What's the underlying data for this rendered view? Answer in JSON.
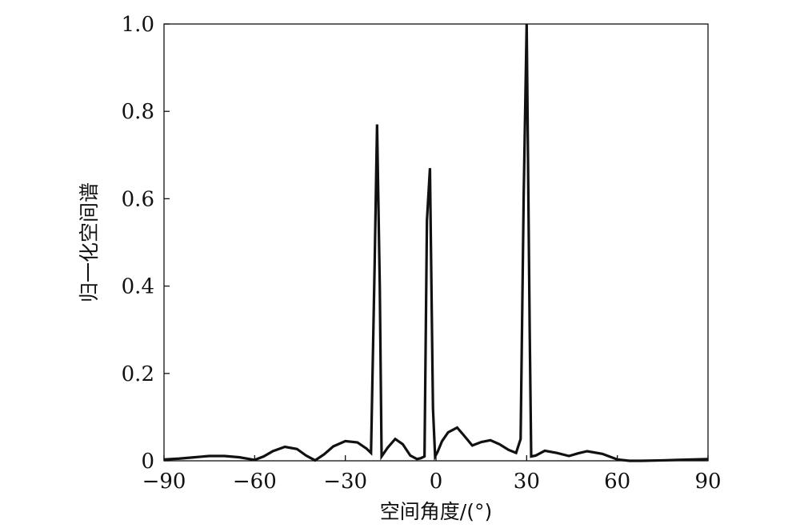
{
  "chart_data": {
    "type": "line",
    "title": "",
    "xlabel": "空间角度/(°)",
    "ylabel": "归一化空间谱",
    "xlim": [
      -90,
      90
    ],
    "ylim": [
      0,
      1.0
    ],
    "grid": false,
    "legend": "none",
    "line_color": "#111111",
    "x_ticks": [
      {
        "value": -90,
        "label": "−90"
      },
      {
        "value": -60,
        "label": "−60"
      },
      {
        "value": -30,
        "label": "−30"
      },
      {
        "value": 0,
        "label": "0"
      },
      {
        "value": 30,
        "label": "30"
      },
      {
        "value": 60,
        "label": "60"
      },
      {
        "value": 90,
        "label": "90"
      }
    ],
    "y_ticks": [
      {
        "value": 0,
        "label": "0"
      },
      {
        "value": 0.2,
        "label": "0.2"
      },
      {
        "value": 0.4,
        "label": "0.4"
      },
      {
        "value": 0.6,
        "label": "0.6"
      },
      {
        "value": 0.8,
        "label": "0.8"
      },
      {
        "value": 1.0,
        "label": "1.0"
      }
    ],
    "series": [
      {
        "x": [
          -90,
          -85,
          -80,
          -75,
          -70,
          -65,
          -60,
          -57,
          -54,
          -50,
          -46,
          -43,
          -40,
          -37,
          -34,
          -30,
          -26,
          -23,
          -21.5,
          -20.3,
          -19.5,
          -18.6,
          -18,
          -16,
          -13.5,
          -11,
          -8.5,
          -6.3,
          -5,
          -3.8,
          -3,
          -2,
          -1,
          -0.3,
          0.5,
          2,
          4,
          7,
          9,
          12,
          15,
          18,
          21,
          24,
          26.5,
          28,
          29,
          30,
          31,
          31.5,
          33,
          36,
          40,
          44,
          47,
          50,
          55,
          60,
          64,
          68,
          75,
          80,
          85,
          90
        ],
        "y": [
          0.003,
          0.005,
          0.008,
          0.011,
          0.011,
          0.008,
          0.002,
          0.01,
          0.022,
          0.032,
          0.027,
          0.012,
          0.001,
          0.015,
          0.033,
          0.045,
          0.042,
          0.028,
          0.018,
          0.45,
          0.77,
          0.4,
          0.01,
          0.03,
          0.05,
          0.038,
          0.012,
          0.004,
          0.006,
          0.01,
          0.55,
          0.67,
          0.12,
          0.01,
          0.02,
          0.045,
          0.065,
          0.076,
          0.06,
          0.035,
          0.043,
          0.047,
          0.038,
          0.025,
          0.018,
          0.05,
          0.6,
          1.0,
          0.3,
          0.01,
          0.012,
          0.023,
          0.018,
          0.011,
          0.017,
          0.022,
          0.016,
          0.003,
          0.0,
          0.0,
          0.001,
          0.002,
          0.003,
          0.004
        ]
      }
    ]
  }
}
